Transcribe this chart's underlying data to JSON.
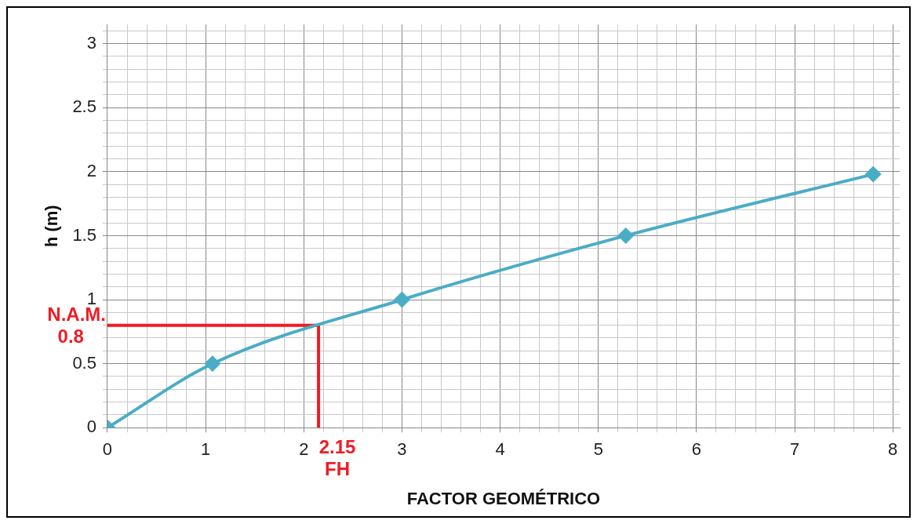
{
  "chart_data": {
    "type": "line",
    "xlabel": "FACTOR GEOMÉTRICO",
    "ylabel": "h (m)",
    "xlim": [
      0,
      8.07
    ],
    "ylim": [
      0,
      3.15
    ],
    "xticks": [
      0,
      {
        "value": 0.2,
        "label": null
      },
      {
        "value": 0.4,
        "label": null
      },
      {
        "value": 0.6,
        "label": null
      },
      {
        "value": 0.8,
        "label": null
      },
      1,
      {
        "value": 1.2,
        "label": null
      },
      {
        "value": 1.4,
        "label": null
      },
      {
        "value": 1.6,
        "label": null
      },
      {
        "value": 1.8,
        "label": null
      },
      2,
      {
        "value": 2.2,
        "label": null
      },
      {
        "value": 2.4,
        "label": null
      },
      {
        "value": 2.6,
        "label": null
      },
      {
        "value": 2.8,
        "label": null
      },
      3,
      {
        "value": 3.2,
        "label": null
      },
      {
        "value": 3.4,
        "label": null
      },
      {
        "value": 3.6,
        "label": null
      },
      {
        "value": 3.8,
        "label": null
      },
      4,
      {
        "value": 4.2,
        "label": null
      },
      {
        "value": 4.4,
        "label": null
      },
      {
        "value": 4.6,
        "label": null
      },
      {
        "value": 4.8,
        "label": null
      },
      5,
      {
        "value": 5.2,
        "label": null
      },
      {
        "value": 5.4,
        "label": null
      },
      {
        "value": 5.6,
        "label": null
      },
      {
        "value": 5.8,
        "label": null
      },
      6,
      {
        "value": 6.2,
        "label": null
      },
      {
        "value": 6.4,
        "label": null
      },
      {
        "value": 6.6,
        "label": null
      },
      {
        "value": 6.8,
        "label": null
      },
      7,
      {
        "value": 7.2,
        "label": null
      },
      {
        "value": 7.4,
        "label": null
      },
      {
        "value": 7.6,
        "label": null
      },
      {
        "value": 7.8,
        "label": null
      },
      8
    ],
    "yticks": [
      0,
      {
        "value": 0.1,
        "label": null
      },
      {
        "value": 0.2,
        "label": null
      },
      {
        "value": 0.3,
        "label": null
      },
      {
        "value": 0.4,
        "label": null
      },
      0.5,
      {
        "value": 0.6,
        "label": null
      },
      {
        "value": 0.7,
        "label": null
      },
      {
        "value": 0.8,
        "label": null
      },
      {
        "value": 0.9,
        "label": null
      },
      1,
      {
        "value": 1.1,
        "label": null
      },
      {
        "value": 1.2,
        "label": null
      },
      {
        "value": 1.3,
        "label": null
      },
      {
        "value": 1.4,
        "label": null
      },
      1.5,
      {
        "value": 1.6,
        "label": null
      },
      {
        "value": 1.7,
        "label": null
      },
      {
        "value": 1.8,
        "label": null
      },
      {
        "value": 1.9,
        "label": null
      },
      2,
      {
        "value": 2.1,
        "label": null
      },
      {
        "value": 2.2,
        "label": null
      },
      {
        "value": 2.3,
        "label": null
      },
      {
        "value": 2.4,
        "label": null
      },
      2.5,
      {
        "value": 2.6,
        "label": null
      },
      {
        "value": 2.7,
        "label": null
      },
      {
        "value": 2.8,
        "label": null
      },
      {
        "value": 2.9,
        "label": null
      },
      3,
      {
        "value": 3.1,
        "label": null
      }
    ],
    "grid": true,
    "legend": false,
    "series": [
      {
        "color": "#4bacc6",
        "marker": "diamond",
        "x": [
          0,
          1.07,
          3,
          5.28,
          7.8
        ],
        "values": [
          0,
          0.5,
          1,
          1.5,
          1.98
        ]
      },
      {
        "color": "#ee1c25",
        "marker": "none",
        "x": [
          0,
          2.15,
          2.15
        ],
        "values": [
          0.8,
          0.8,
          0
        ]
      }
    ],
    "annotations": [
      {
        "text": "N.A.M.\n0.8",
        "x": 0,
        "y": 0.8
      },
      {
        "text": "2.15\nFH",
        "x": 2.15,
        "y": 0
      }
    ]
  }
}
